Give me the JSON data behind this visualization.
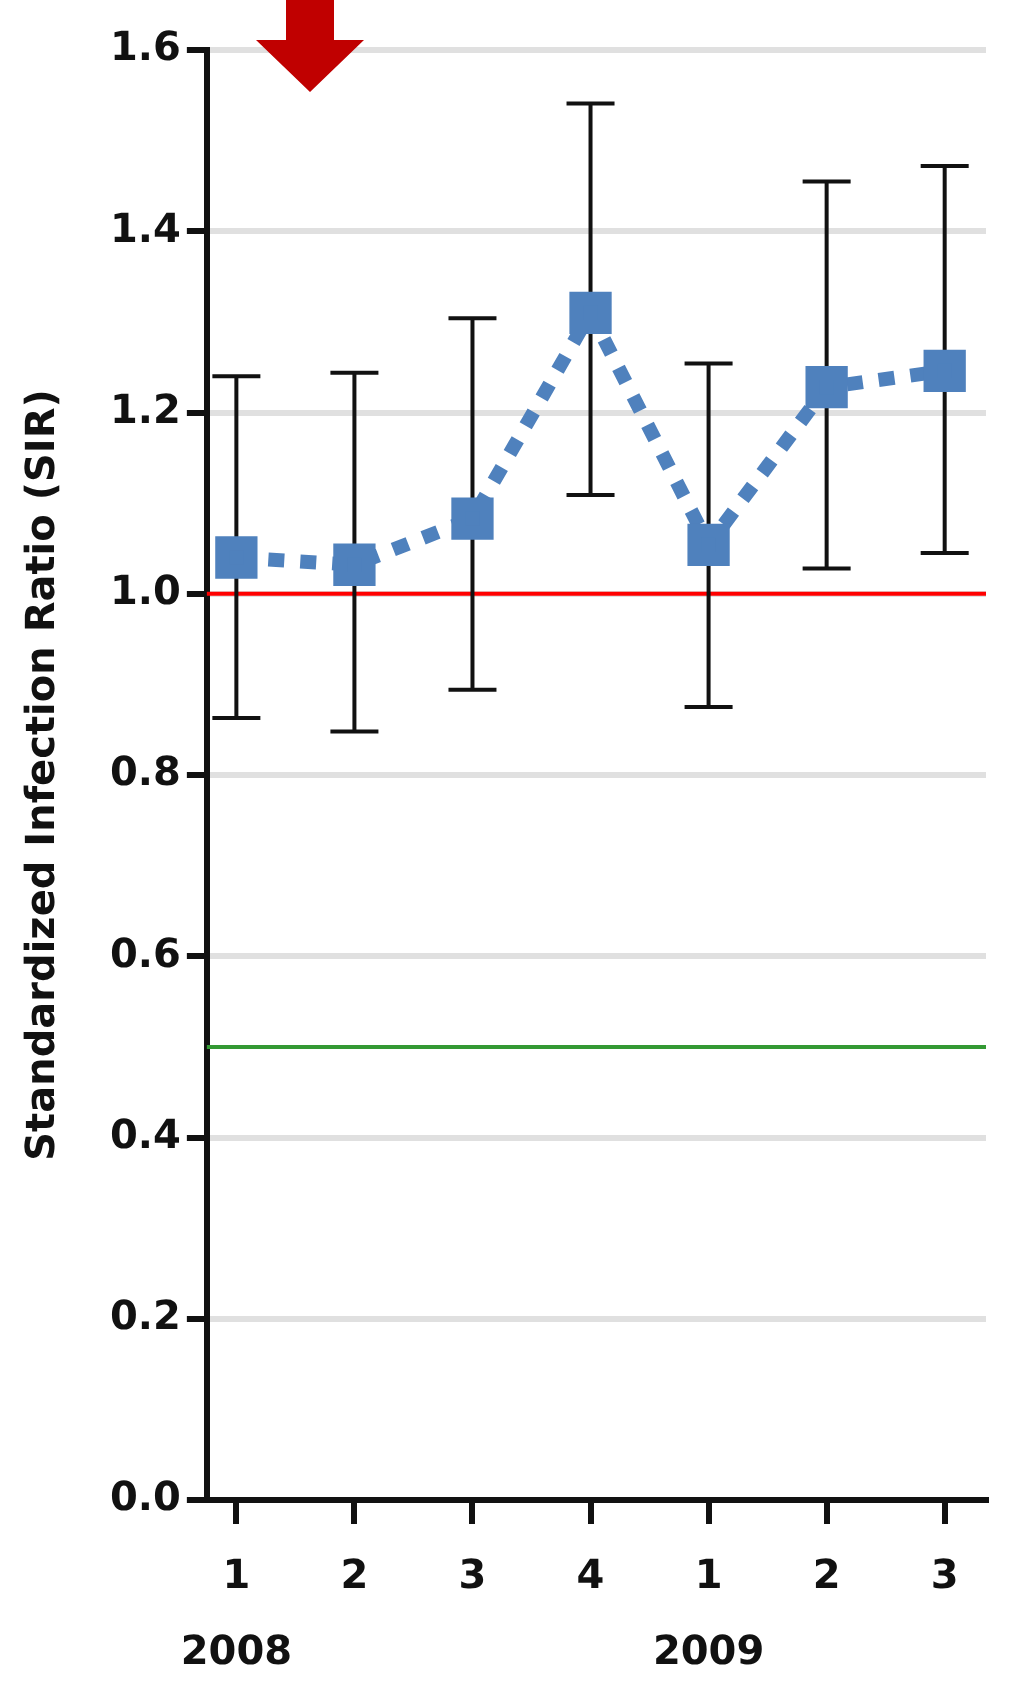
{
  "chart_data": {
    "type": "line",
    "ylabel": "Standardized Infection Ratio (SIR)",
    "categories": [
      "1\n2008",
      "2",
      "3",
      "4",
      "1\n2009",
      "2",
      "3"
    ],
    "series": [
      {
        "color": "#4f81bd",
        "values": [
          1.04,
          1.032,
          1.083,
          1.31,
          1.054,
          1.228,
          1.246
        ],
        "errors": [
          [
            0.863,
            1.24
          ],
          [
            0.848,
            1.244
          ],
          [
            0.894,
            1.304
          ],
          [
            1.109,
            1.541
          ],
          [
            0.875,
            1.254
          ],
          [
            1.028,
            1.455
          ],
          [
            1.045,
            1.472
          ]
        ]
      }
    ],
    "ylim": [
      0,
      1.6
    ],
    "yticks": [
      {
        "value": 0,
        "label": "0.0"
      },
      0.2,
      0.4,
      0.6,
      0.8,
      {
        "value": 1,
        "label": "1.0"
      },
      1.2,
      1.4,
      1.6
    ],
    "ref_lines": [
      {
        "axis": "y",
        "value": 1,
        "color": "#ff0000"
      },
      {
        "axis": "y",
        "value": 0.5,
        "color": "#339933"
      }
    ],
    "grid": "y",
    "legend": false,
    "marker": "square",
    "line_style": "dotted"
  }
}
